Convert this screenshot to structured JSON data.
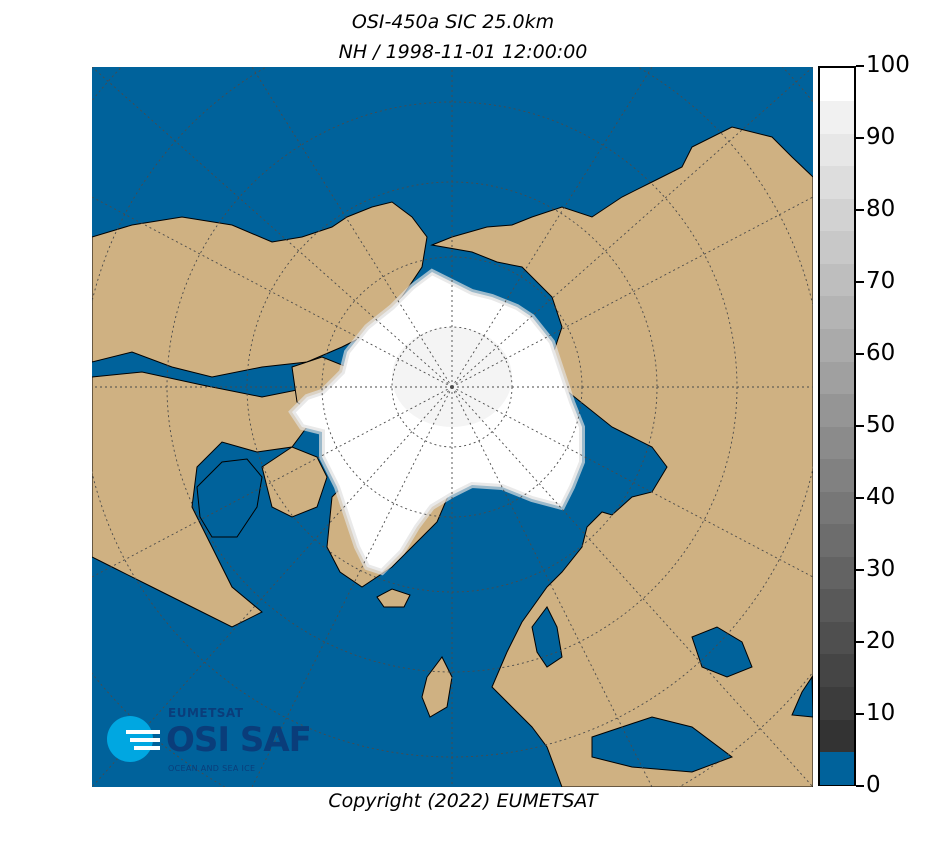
{
  "title_line1": "OSI-450a SIC 25.0km",
  "title_line2": "NH / 1998-11-01 12:00:00",
  "copyright": "Copyright (2022)  EUMETSAT",
  "logo": {
    "org": "EUMETSAT",
    "name": "OSI SAF",
    "tagline": "OCEAN AND SEA ICE"
  },
  "colors": {
    "ocean": "#00629b",
    "land": "#cfb182",
    "coast": "#000000",
    "grid": "#4a4a4a",
    "ice_max": "#ffffff"
  },
  "colorbar": {
    "min": 0,
    "max": 100,
    "ticks": [
      "100",
      "90",
      "80",
      "70",
      "60",
      "50",
      "40",
      "30",
      "20",
      "10",
      "0"
    ],
    "segments": [
      "#00629b",
      "#333333",
      "#3c3c3c",
      "#454545",
      "#4f4f4f",
      "#595959",
      "#636363",
      "#6d6d6d",
      "#777777",
      "#818181",
      "#8b8b8b",
      "#959595",
      "#a0a0a0",
      "#aaaaaa",
      "#b4b4b4",
      "#bebebe",
      "#c8c8c8",
      "#d2d2d2",
      "#dddddd",
      "#e7e7e7",
      "#f1f1f1",
      "#ffffff"
    ]
  }
}
